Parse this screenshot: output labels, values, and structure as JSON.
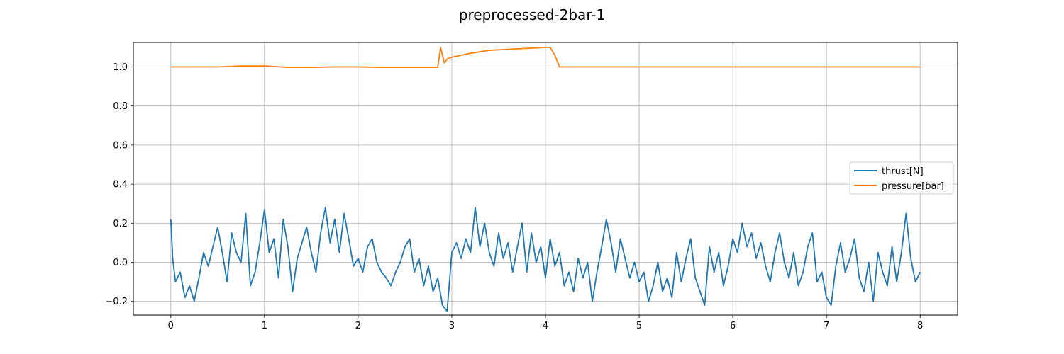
{
  "chart_data": {
    "type": "line",
    "title": "preprocessed-2bar-1",
    "xlabel": "",
    "ylabel": "",
    "xlim": [
      -0.4,
      8.4
    ],
    "ylim": [
      -0.27,
      1.125
    ],
    "xticks": [
      0,
      1,
      2,
      3,
      4,
      5,
      6,
      7,
      8
    ],
    "xtick_labels": [
      "0",
      "1",
      "2",
      "3",
      "4",
      "5",
      "6",
      "7",
      "8"
    ],
    "yticks": [
      -0.2,
      0.0,
      0.2,
      0.4,
      0.6,
      0.8,
      1.0
    ],
    "ytick_labels": [
      "−0.2",
      "0.0",
      "0.2",
      "0.4",
      "0.6",
      "0.8",
      "1.0"
    ],
    "grid": true,
    "legend_position": "center-right",
    "series": [
      {
        "name": "thrust[N]",
        "color": "#1f77b4",
        "x": [
          0,
          0.02,
          0.05,
          0.1,
          0.15,
          0.2,
          0.25,
          0.3,
          0.35,
          0.4,
          0.45,
          0.5,
          0.55,
          0.6,
          0.65,
          0.7,
          0.75,
          0.8,
          0.85,
          0.9,
          0.95,
          1.0,
          1.05,
          1.1,
          1.15,
          1.2,
          1.25,
          1.3,
          1.35,
          1.4,
          1.45,
          1.5,
          1.55,
          1.6,
          1.65,
          1.7,
          1.75,
          1.8,
          1.85,
          1.9,
          1.95,
          2.0,
          2.05,
          2.1,
          2.15,
          2.2,
          2.25,
          2.3,
          2.35,
          2.4,
          2.45,
          2.5,
          2.55,
          2.6,
          2.65,
          2.7,
          2.75,
          2.8,
          2.85,
          2.9,
          2.95,
          3.0,
          3.05,
          3.1,
          3.15,
          3.2,
          3.25,
          3.3,
          3.35,
          3.4,
          3.45,
          3.5,
          3.55,
          3.6,
          3.65,
          3.7,
          3.75,
          3.8,
          3.85,
          3.9,
          3.95,
          4.0,
          4.05,
          4.1,
          4.15,
          4.2,
          4.25,
          4.3,
          4.35,
          4.4,
          4.45,
          4.5,
          4.55,
          4.6,
          4.65,
          4.7,
          4.75,
          4.8,
          4.85,
          4.9,
          4.95,
          5.0,
          5.05,
          5.1,
          5.15,
          5.2,
          5.25,
          5.3,
          5.35,
          5.4,
          5.45,
          5.5,
          5.55,
          5.6,
          5.65,
          5.7,
          5.75,
          5.8,
          5.85,
          5.9,
          5.95,
          6.0,
          6.05,
          6.1,
          6.15,
          6.2,
          6.25,
          6.3,
          6.35,
          6.4,
          6.45,
          6.5,
          6.55,
          6.6,
          6.65,
          6.7,
          6.75,
          6.8,
          6.85,
          6.9,
          6.95,
          7.0,
          7.05,
          7.1,
          7.15,
          7.2,
          7.25,
          7.3,
          7.35,
          7.4,
          7.45,
          7.5,
          7.55,
          7.6,
          7.65,
          7.7,
          7.75,
          7.8,
          7.85,
          7.9,
          7.95,
          8.0
        ],
        "y": [
          0.22,
          0.02,
          -0.1,
          -0.05,
          -0.18,
          -0.12,
          -0.2,
          -0.08,
          0.05,
          -0.02,
          0.08,
          0.18,
          0.05,
          -0.1,
          0.15,
          0.05,
          0.0,
          0.25,
          -0.12,
          -0.05,
          0.1,
          0.27,
          0.05,
          0.12,
          -0.08,
          0.22,
          0.08,
          -0.15,
          0.02,
          0.1,
          0.18,
          0.05,
          -0.05,
          0.15,
          0.28,
          0.1,
          0.22,
          0.05,
          0.25,
          0.12,
          -0.02,
          0.02,
          -0.05,
          0.08,
          0.12,
          0.0,
          -0.05,
          -0.08,
          -0.12,
          -0.05,
          0.0,
          0.08,
          0.12,
          -0.05,
          0.02,
          -0.12,
          -0.02,
          -0.15,
          -0.08,
          -0.22,
          -0.25,
          0.05,
          0.1,
          0.02,
          0.12,
          0.05,
          0.28,
          0.08,
          0.2,
          0.05,
          -0.02,
          0.15,
          0.02,
          0.1,
          -0.05,
          0.08,
          0.2,
          -0.05,
          0.15,
          0.0,
          0.08,
          -0.08,
          0.12,
          -0.02,
          0.05,
          -0.12,
          -0.05,
          -0.15,
          0.02,
          -0.08,
          0.0,
          -0.2,
          -0.05,
          0.08,
          0.22,
          0.1,
          -0.05,
          0.12,
          0.02,
          -0.08,
          0.0,
          -0.1,
          -0.05,
          -0.2,
          -0.12,
          0.0,
          -0.15,
          -0.08,
          -0.18,
          0.05,
          -0.1,
          0.02,
          0.12,
          -0.08,
          -0.15,
          -0.22,
          0.08,
          -0.05,
          0.05,
          -0.12,
          -0.02,
          0.12,
          0.05,
          0.2,
          0.08,
          0.15,
          0.02,
          0.1,
          -0.02,
          -0.1,
          0.05,
          0.15,
          0.0,
          -0.08,
          0.05,
          -0.12,
          -0.05,
          0.08,
          0.15,
          -0.1,
          -0.05,
          -0.18,
          -0.22,
          -0.02,
          0.1,
          -0.05,
          0.02,
          0.12,
          -0.08,
          -0.15,
          0.0,
          -0.2,
          0.05,
          -0.05,
          -0.12,
          0.08,
          -0.1,
          0.05,
          0.25,
          0.02,
          -0.1,
          -0.05
        ]
      },
      {
        "name": "pressure[bar]",
        "color": "#ff7f0e",
        "x": [
          0,
          0.25,
          0.5,
          0.75,
          1.0,
          1.25,
          1.5,
          1.75,
          2.0,
          2.25,
          2.5,
          2.75,
          2.85,
          2.88,
          2.92,
          2.95,
          3.0,
          3.2,
          3.4,
          3.6,
          3.8,
          4.0,
          4.05,
          4.1,
          4.15,
          4.2,
          4.5,
          5.0,
          5.5,
          6.0,
          6.5,
          7.0,
          7.5,
          8.0
        ],
        "y": [
          1.0,
          1.0,
          1.0,
          1.005,
          1.005,
          0.998,
          0.998,
          1.0,
          1.0,
          0.998,
          0.998,
          0.998,
          0.998,
          1.1,
          1.02,
          1.04,
          1.05,
          1.07,
          1.085,
          1.09,
          1.095,
          1.1,
          1.1,
          1.06,
          1.0,
          1.0,
          1.0,
          1.0,
          1.0,
          1.0,
          1.0,
          1.0,
          1.0,
          1.0
        ]
      }
    ]
  }
}
